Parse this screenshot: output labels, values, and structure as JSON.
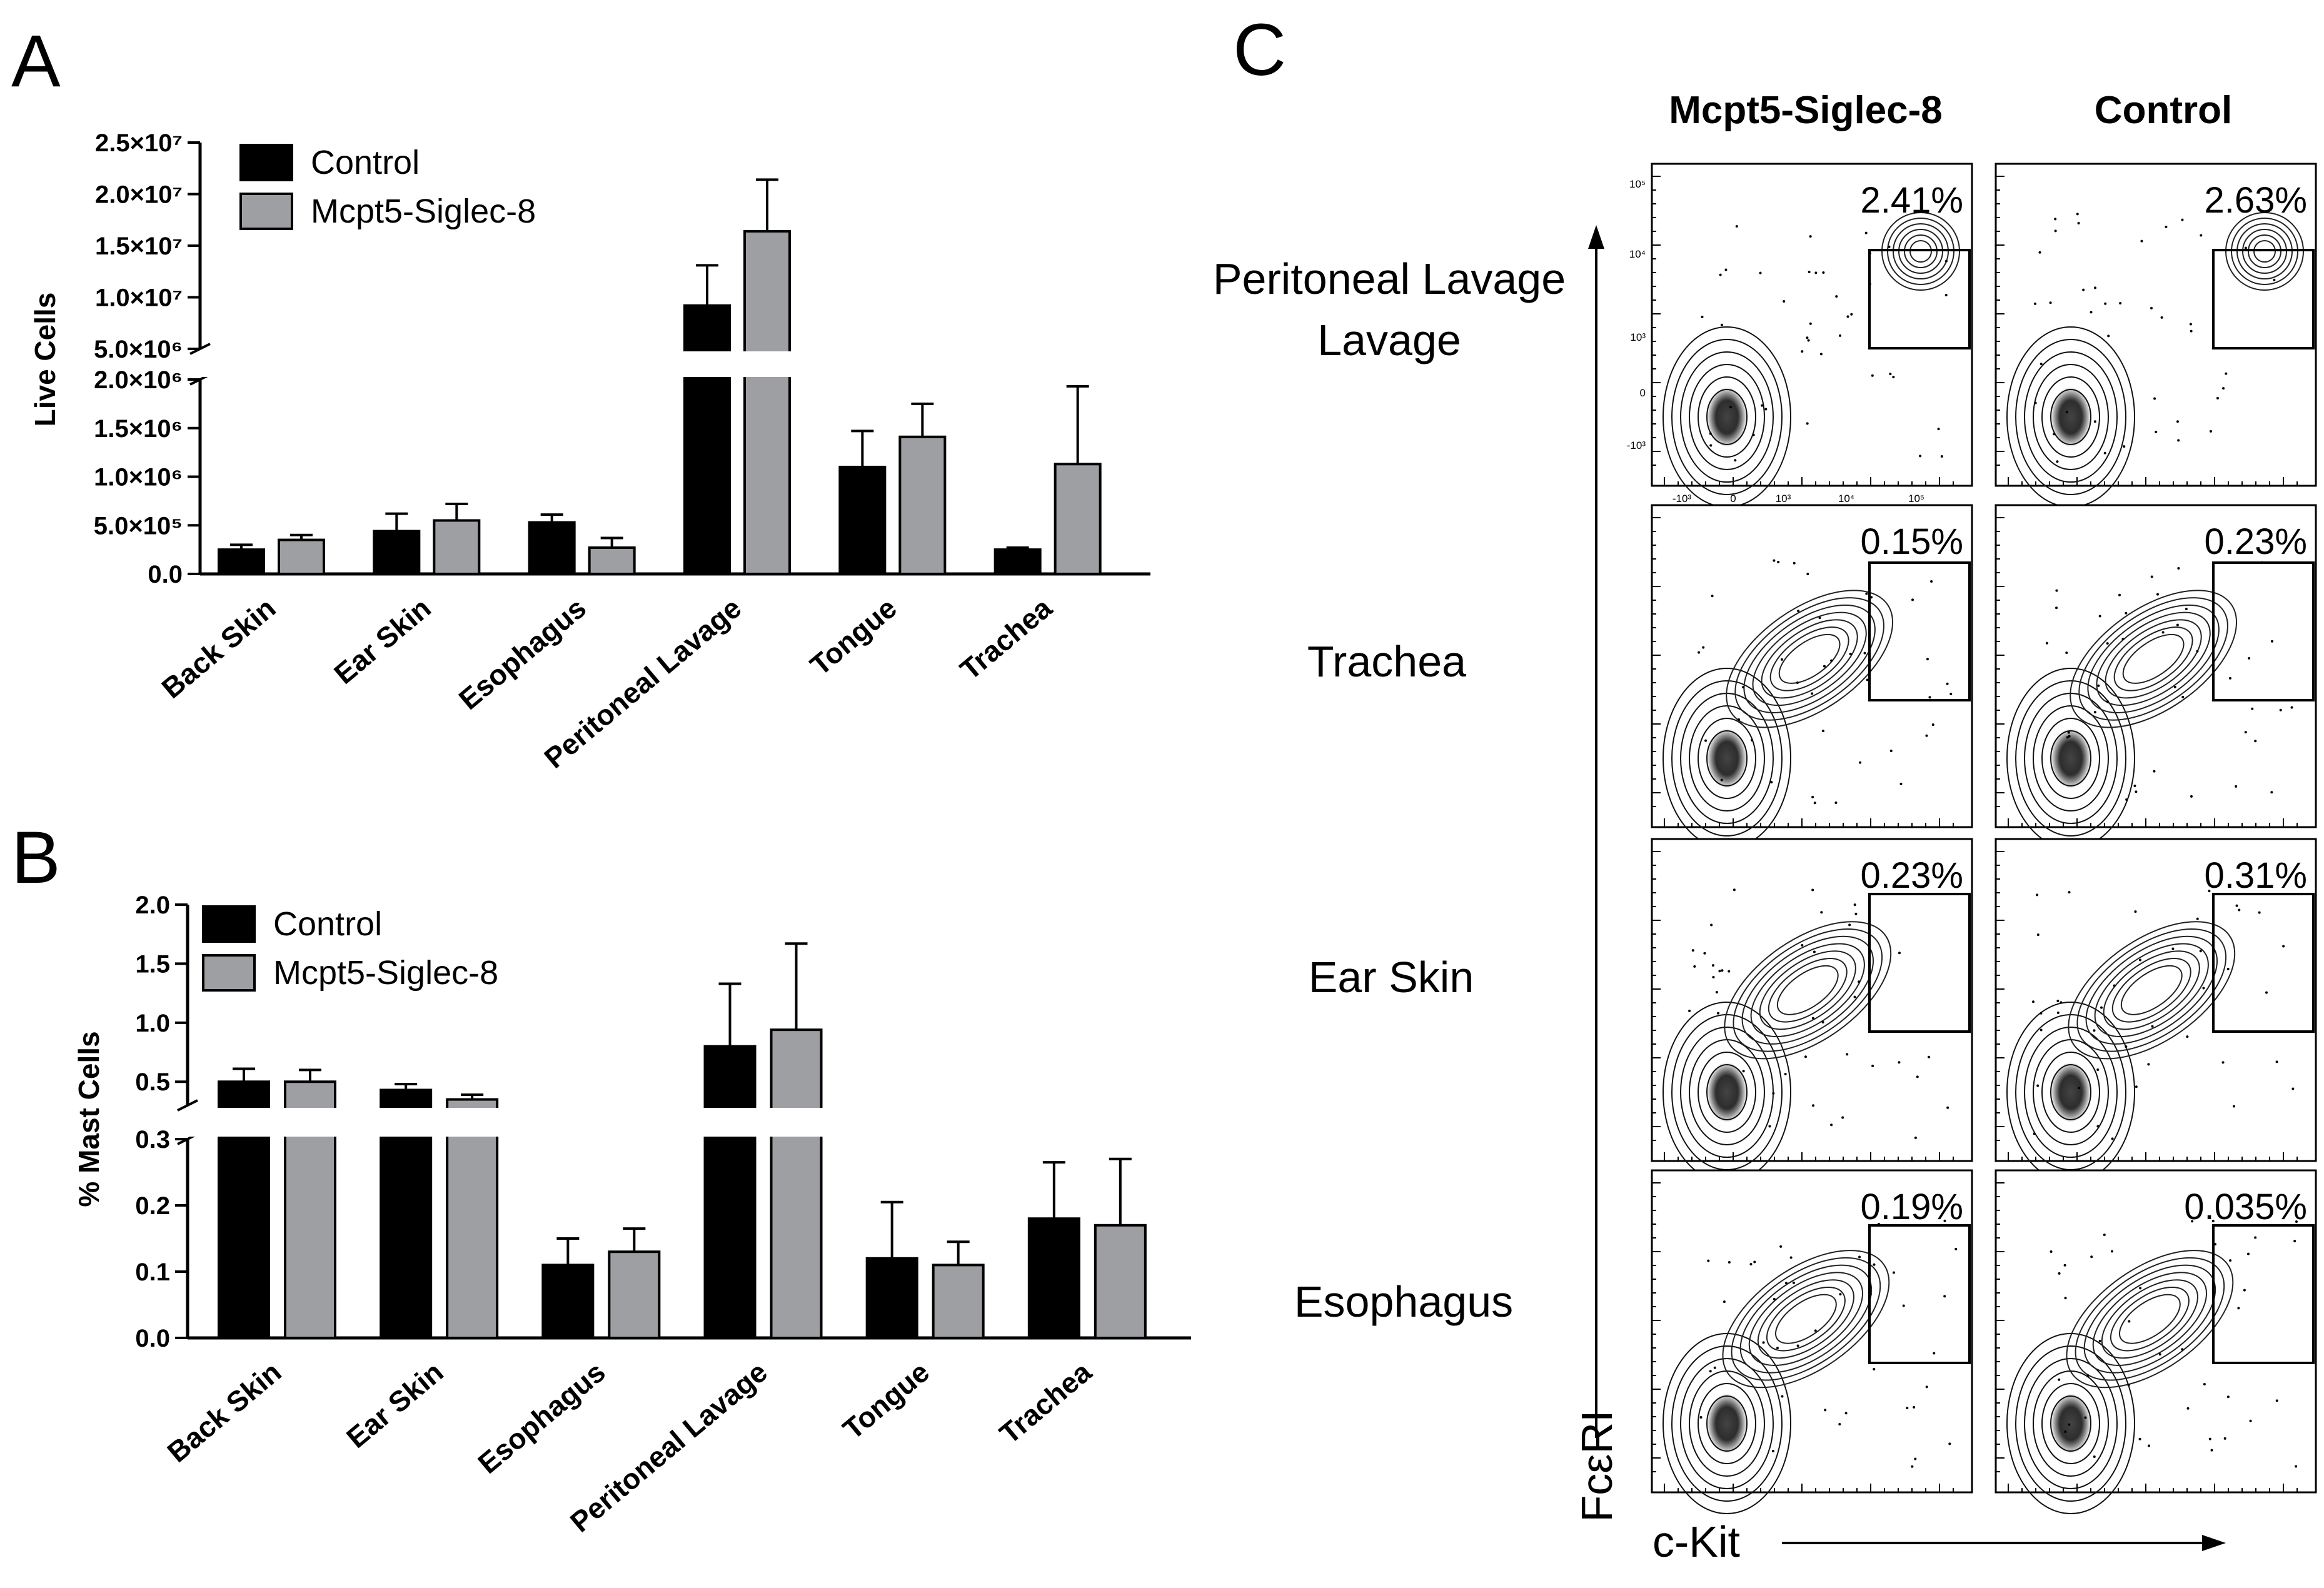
{
  "figure": {
    "panels": [
      "A",
      "B",
      "C"
    ]
  },
  "chart_data": [
    {
      "id": "A",
      "type": "bar",
      "ylabel": "Live Cells",
      "categories": [
        "Back Skin",
        "Ear Skin",
        "Esophagus",
        "Peritoneal Lavage",
        "Tongue",
        "Trachea"
      ],
      "series": [
        {
          "name": "Control",
          "color": "#000000",
          "values": [
            250000,
            440000,
            530000,
            9200000,
            1100000,
            250000
          ],
          "errors": [
            50000,
            180000,
            80000,
            3900000,
            370000,
            20000
          ]
        },
        {
          "name": "Mcpt5-Siglec-8",
          "color": "#9d9fa2",
          "values": [
            350000,
            550000,
            270000,
            16400000,
            1410000,
            1130000
          ],
          "errors": [
            50000,
            170000,
            100000,
            5000000,
            340000,
            800000
          ]
        }
      ],
      "axis_break": {
        "lower_range": [
          0,
          2000000
        ],
        "upper_range": [
          5000000,
          25000000
        ]
      },
      "lower_ticks": [
        "0.0",
        "5.0×10⁵",
        "1.0×10⁶",
        "1.5×10⁶",
        "2.0×10⁶"
      ],
      "upper_ticks": [
        "5.0×10⁶",
        "1.0×10⁷",
        "1.5×10⁷",
        "2.0×10⁷",
        "2.5×10⁷"
      ]
    },
    {
      "id": "B",
      "type": "bar",
      "ylabel": "% Mast Cells",
      "categories": [
        "Back Skin",
        "Ear Skin",
        "Esophagus",
        "Peritoneal Lavage",
        "Tongue",
        "Trachea"
      ],
      "series": [
        {
          "name": "Control",
          "color": "#000000",
          "values": [
            0.5,
            0.43,
            0.11,
            0.8,
            0.12,
            0.18
          ],
          "errors": [
            0.11,
            0.05,
            0.04,
            0.53,
            0.085,
            0.085
          ]
        },
        {
          "name": "Mcpt5-Siglec-8",
          "color": "#9d9fa2",
          "values": [
            0.5,
            0.35,
            0.13,
            0.94,
            0.11,
            0.17
          ],
          "errors": [
            0.1,
            0.04,
            0.035,
            0.73,
            0.035,
            0.1
          ]
        }
      ],
      "axis_break": {
        "lower_range": [
          0,
          0.3
        ],
        "upper_range": [
          0.3,
          2.0
        ]
      },
      "lower_ticks": [
        "0.0",
        "0.1",
        "0.2",
        "0.3"
      ],
      "upper_ticks": [
        "0.5",
        "1.0",
        "1.5",
        "2.0"
      ]
    },
    {
      "id": "C",
      "type": "scatter",
      "subtype": "flow cytometry contour plots",
      "columns": [
        "Mcpt5-Siglec-8",
        "Control"
      ],
      "rows": [
        "Peritoneal Lavage",
        "Trachea",
        "Ear Skin",
        "Esophagus"
      ],
      "gate_percentages": [
        [
          "2.41%",
          "2.63%"
        ],
        [
          "0.15%",
          "0.23%"
        ],
        [
          "0.23%",
          "0.31%"
        ],
        [
          "0.19%",
          "0.035%"
        ]
      ],
      "xlabel": "c-Kit",
      "ylabel": "FcεRI",
      "y_ticks": [
        "10⁵",
        "10⁴",
        "10³",
        "0",
        "-10³"
      ],
      "x_ticks": [
        "-10³",
        "0",
        "10³",
        "10⁴",
        "10⁵"
      ]
    }
  ]
}
